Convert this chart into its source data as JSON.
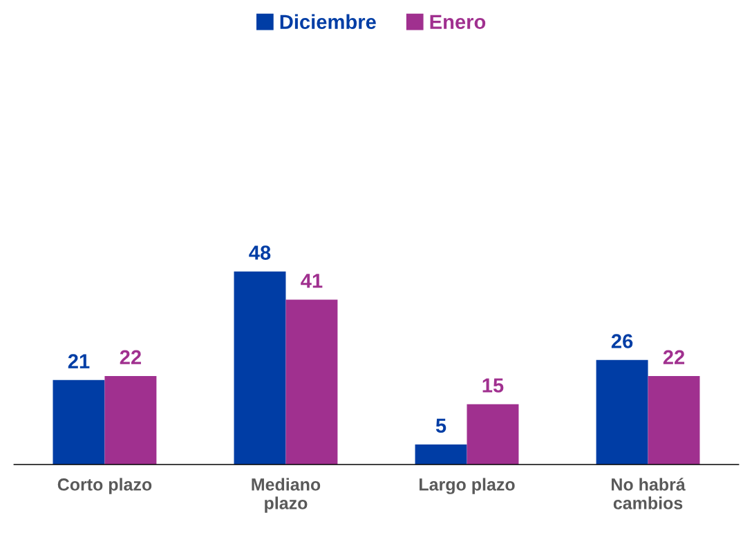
{
  "chart_data": {
    "type": "bar",
    "categories": [
      "Corto plazo",
      "Mediano plazo",
      "Largo plazo",
      "No habrá cambios"
    ],
    "series": [
      {
        "name": "Diciembre",
        "color": "#003da5",
        "values": [
          21,
          48,
          5,
          26
        ]
      },
      {
        "name": "Enero",
        "color": "#a0308f",
        "values": [
          22,
          41,
          15,
          22
        ]
      }
    ],
    "data_labels": true,
    "legend": "top",
    "grid": false
  }
}
